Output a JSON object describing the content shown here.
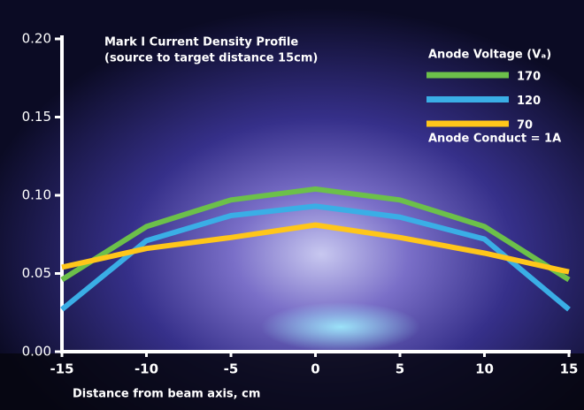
{
  "chart_data": {
    "type": "line",
    "title": "Mark I Current Density Profile",
    "subtitle": "(source to target distance 15cm)",
    "x_label": "Distance from beam axis, cm",
    "legend_title": "Anode Voltage (Vₐ)",
    "annotation": "Anode Conduct = 1A",
    "x": [
      -15,
      -10,
      -5,
      0,
      5,
      10,
      15
    ],
    "series": [
      {
        "name": "170",
        "color": "#6cc04a",
        "values": [
          0.046,
          0.08,
          0.097,
          0.104,
          0.097,
          0.08,
          0.046
        ]
      },
      {
        "name": "120",
        "color": "#3aaee6",
        "values": [
          0.027,
          0.071,
          0.087,
          0.093,
          0.086,
          0.072,
          0.027
        ]
      },
      {
        "name": "70",
        "color": "#ffc61a",
        "values": [
          0.054,
          0.066,
          0.073,
          0.081,
          0.073,
          0.063,
          0.051
        ]
      }
    ],
    "xlim": [
      -15,
      15
    ],
    "xticks": [
      -15,
      -10,
      -5,
      0,
      5,
      10,
      15
    ],
    "ylim": [
      0,
      0.2
    ],
    "yticks": [
      {
        "value": 0,
        "label": "0.00"
      },
      {
        "value": 0.05,
        "label": "0.05"
      },
      {
        "value": 0.1,
        "label": "0.10"
      },
      {
        "value": 0.15,
        "label": "0.15"
      },
      {
        "value": 0.2,
        "label": "0.20"
      }
    ],
    "legend_position": "upper right"
  }
}
